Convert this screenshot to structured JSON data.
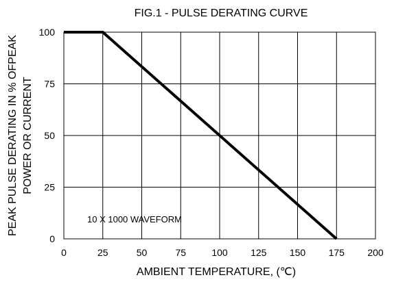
{
  "chart_data": {
    "type": "line",
    "title": "FIG.1 - PULSE DERATING CURVE",
    "xlabel": "AMBIENT TEMPERATURE, (℃)",
    "ylabel_line1": "PEAK PULSE DERATING IN % OFPEAK",
    "ylabel_line2": "POWER OR CURRENT",
    "xlim": [
      0,
      200
    ],
    "ylim": [
      0,
      100
    ],
    "x_ticks": [
      0,
      25,
      50,
      75,
      100,
      125,
      150,
      175,
      200
    ],
    "y_ticks": [
      0,
      25,
      50,
      75,
      100
    ],
    "x_tick_labels": [
      "0",
      "25",
      "50",
      "75",
      "100",
      "125",
      "150",
      "175",
      "200"
    ],
    "y_tick_labels": [
      "0",
      "25",
      "50",
      "75",
      "100"
    ],
    "grid": true,
    "series": [
      {
        "x": [
          0,
          25,
          175
        ],
        "y": [
          100,
          100,
          0
        ]
      }
    ],
    "annotation": "10 X 1000 WAVEFORM"
  }
}
